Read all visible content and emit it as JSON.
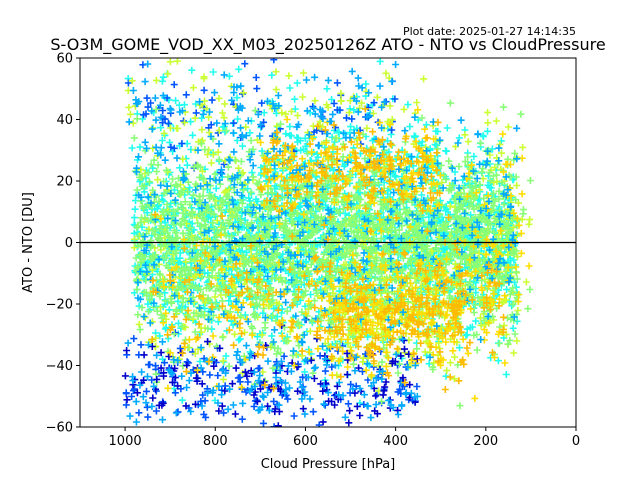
{
  "chart_data": {
    "type": "scatter",
    "plot_date": "Plot date: 2025-01-27 14:14:35",
    "title": "S-O3M_GOME_VOD_XX_M03_20250126Z ATO - NTO vs CloudPressure",
    "xlabel": "Cloud Pressure [hPa]",
    "ylabel": "ATO - NTO [DU]",
    "xlim": [
      1100,
      0
    ],
    "ylim": [
      -60,
      60
    ],
    "x_inverted": true,
    "xticks": [
      1000,
      800,
      600,
      400,
      200,
      0
    ],
    "yticks": [
      -60,
      -40,
      -20,
      0,
      20,
      40,
      60
    ],
    "xtick_labels": [
      "1000",
      "800",
      "600",
      "400",
      "200",
      "0"
    ],
    "ytick_labels": [
      "−60",
      "−40",
      "−20",
      "0",
      "20",
      "40",
      "60"
    ],
    "reference_line_y": 0,
    "marker": "plus",
    "grid": false,
    "colormap": "jet",
    "colors": [
      "#0000cc",
      "#0055ff",
      "#00aaff",
      "#22ffee",
      "#88ff77",
      "#ccff33",
      "#ffdd00",
      "#ffbb00"
    ],
    "clusters": [
      {
        "x_range": [
          130,
          980
        ],
        "y_center": 0,
        "y_spread": 13,
        "color_mix": [
          3,
          4
        ],
        "count": 2600
      },
      {
        "x_range": [
          130,
          980
        ],
        "y_center": 5,
        "y_spread": 20,
        "color_mix": [
          2,
          3,
          4,
          5
        ],
        "count": 1500
      },
      {
        "x_range": [
          150,
          950
        ],
        "y_center": -20,
        "y_spread": 14,
        "color_mix": [
          3,
          4,
          5,
          6,
          7
        ],
        "count": 900
      },
      {
        "x_range": [
          300,
          700
        ],
        "y_center": 24,
        "y_spread": 8,
        "color_mix": [
          6,
          7,
          3
        ],
        "count": 500
      },
      {
        "x_range": [
          250,
          550
        ],
        "y_center": -22,
        "y_spread": 10,
        "color_mix": [
          6,
          7,
          5
        ],
        "count": 500
      },
      {
        "x_range": [
          350,
          1000
        ],
        "y_center": -45,
        "y_spread": 8,
        "color_mix": [
          0,
          1,
          2
        ],
        "count": 420
      },
      {
        "x_range": [
          400,
          1000
        ],
        "y_center": 42,
        "y_spread": 10,
        "color_mix": [
          1,
          2,
          3,
          5
        ],
        "count": 320
      },
      {
        "x_range": [
          100,
          250
        ],
        "y_center": 5,
        "y_spread": 18,
        "color_mix": [
          4,
          5,
          6
        ],
        "count": 140
      }
    ]
  }
}
